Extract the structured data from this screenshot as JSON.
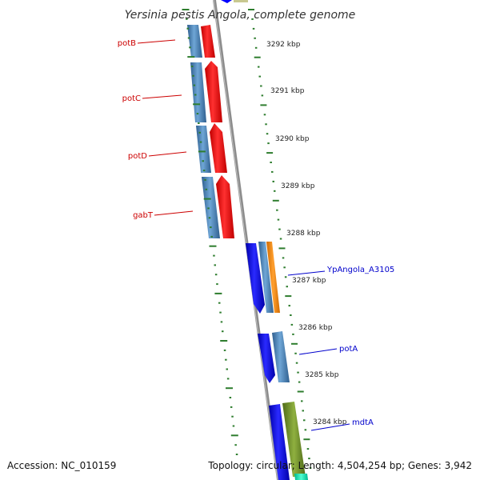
{
  "title": "Yersinia pestis Angola, complete genome",
  "footer": {
    "accession": "Accession: NC_010159",
    "topology": "Topology: circular; Length: 4,504,254 bp; Genes: 3,942"
  },
  "scale_labels": [
    "3292 kbp",
    "3291 kbp",
    "3290 kbp",
    "3289 kbp",
    "3288 kbp",
    "3287 kbp",
    "3286 kbp",
    "3285 kbp",
    "3284 kbp"
  ],
  "genes_left": [
    {
      "name": "potB",
      "color": "#cc0000"
    },
    {
      "name": "potC",
      "color": "#cc0000"
    },
    {
      "name": "potD",
      "color": "#cc0000"
    },
    {
      "name": "gabT",
      "color": "#cc0000"
    }
  ],
  "genes_right": [
    {
      "name": "YpAngola_A3105",
      "color": "#0000cc"
    },
    {
      "name": "potA",
      "color": "#0000cc"
    },
    {
      "name": "mdtA",
      "color": "#0000cc"
    }
  ],
  "colors": {
    "tick": "#2e7d2e",
    "backbone": "#8c8c8c",
    "feature_red": "#ff0000",
    "feature_steel": "#4682b4",
    "feature_blue": "#0000ff",
    "feature_orange": "#ff8c00",
    "feature_olive": "#6b8e23"
  }
}
